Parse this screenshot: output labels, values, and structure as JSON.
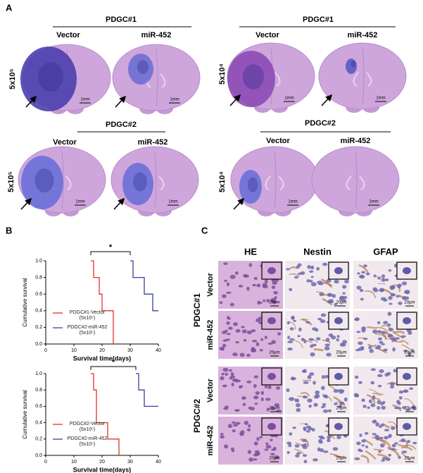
{
  "panel_labels": [
    "A",
    "B",
    "C"
  ],
  "panel_a": {
    "groups": [
      {
        "title": "PDGC#1",
        "columns": [
          "Vector",
          "miR-452"
        ],
        "dose": "5x10⁵",
        "scale_bars": [
          "1mm",
          "1mm"
        ]
      },
      {
        "title": "PDGC#1",
        "columns": [
          "Vector",
          "miR-452"
        ],
        "dose": "5x10⁴",
        "scale_bars": [
          "1mm",
          "1mm"
        ]
      },
      {
        "title": "PDGC#2",
        "columns": [
          "Vector",
          "miR-452"
        ],
        "dose": "5x10⁵",
        "scale_bars": [
          "1mm",
          "1mm"
        ]
      },
      {
        "title": "PDGC#2",
        "columns": [
          "Vector",
          "miR-452"
        ],
        "dose": "5x10⁴",
        "scale_bars": [
          "1mm",
          "1mm"
        ]
      }
    ]
  },
  "chart_data": [
    {
      "type": "line",
      "step": true,
      "xlabel": "Survival time(days)",
      "ylabel": "Cumulative survival",
      "xlim": [
        0,
        40
      ],
      "ylim": [
        0,
        1
      ],
      "xticks": [
        0,
        10,
        20,
        30,
        40
      ],
      "yticks": [
        {
          "value": 0,
          "label": "0.0"
        },
        {
          "value": 0.2,
          "label": "0.2"
        },
        {
          "value": 0.4,
          "label": "0.4"
        },
        {
          "value": 0.6,
          "label": "0.6"
        },
        {
          "value": 0.8,
          "label": "0.8"
        },
        {
          "value": 1,
          "label": "1.0"
        }
      ],
      "annotation": "*",
      "legend_position": "lower left",
      "series": [
        {
          "name": "PDGC#1-Vector (5x10⁵)",
          "color": "#e8302a",
          "x": [
            16,
            17,
            19,
            20,
            24
          ],
          "values": [
            1,
            0.8,
            0.6,
            0.4,
            0
          ]
        },
        {
          "name": "PDGC#2-miR-452 (5x10⁵)",
          "color": "#3b3fa0",
          "x": [
            30,
            31,
            35,
            38,
            40
          ],
          "values": [
            1,
            0.8,
            0.6,
            0.4,
            0.4
          ]
        }
      ]
    },
    {
      "type": "line",
      "step": true,
      "xlabel": "Survival time(days)",
      "ylabel": "Cumulative survival",
      "xlim": [
        0,
        40
      ],
      "ylim": [
        0,
        1
      ],
      "xticks": [
        0,
        10,
        20,
        30,
        40
      ],
      "yticks": [
        {
          "value": 0,
          "label": "0.0"
        },
        {
          "value": 0.2,
          "label": "0.2"
        },
        {
          "value": 0.4,
          "label": "0.4"
        },
        {
          "value": 0.6,
          "label": "0.6"
        },
        {
          "value": 0.8,
          "label": "0.8"
        },
        {
          "value": 1,
          "label": "1.0"
        }
      ],
      "annotation": "*",
      "legend_position": "lower left",
      "series": [
        {
          "name": "PDGC#2-Vector (5x10⁵)",
          "color": "#e8302a",
          "x": [
            16,
            17,
            18,
            22,
            26
          ],
          "values": [
            1,
            0.8,
            0.4,
            0.2,
            0
          ]
        },
        {
          "name": "PDGC#2-miR-452 (5x10⁵)",
          "color": "#3b3fa0",
          "x": [
            32,
            33,
            35,
            40
          ],
          "values": [
            1,
            0.8,
            0.6,
            0.6
          ]
        }
      ]
    }
  ],
  "panel_c": {
    "columns": [
      "HE",
      "Nestin",
      "GFAP"
    ],
    "groups": [
      {
        "name": "PDGC#1",
        "rows": [
          "Vector",
          "miR-452"
        ]
      },
      {
        "name": "PDGC#2",
        "rows": [
          "Vector",
          "miR-452"
        ]
      }
    ],
    "scale_bar": "20μm"
  }
}
